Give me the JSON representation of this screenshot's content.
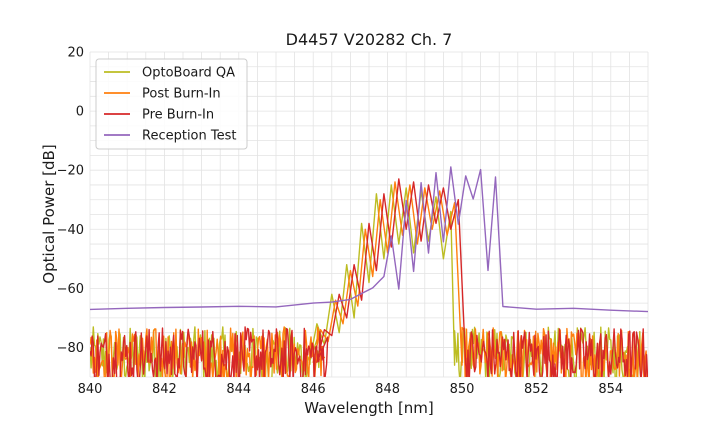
{
  "chart_data": {
    "type": "line",
    "title": "D4457 V20282 Ch. 7",
    "xlabel": "Wavelength [nm]",
    "ylabel": "Optical Power [dB]",
    "xlim": [
      840,
      855
    ],
    "ylim": [
      -90,
      20
    ],
    "xticks": [
      840,
      842,
      844,
      846,
      848,
      850,
      852,
      854
    ],
    "xtick_labels": [
      "840",
      "842",
      "844",
      "846",
      "848",
      "850",
      "852",
      "854"
    ],
    "yticks": [
      -80,
      -60,
      -40,
      -20,
      0,
      20
    ],
    "ytick_labels": [
      "−80",
      "−60",
      "−40",
      "−20",
      "0",
      "20"
    ],
    "grid": true,
    "legend_position": "top-left",
    "series": [
      {
        "name": "OptoBoard QA",
        "color": "#bcbd22",
        "noise_floor": -80,
        "floor_x_range": [
          840,
          846.2,
          849.8,
          855
        ],
        "x": [
          845.9,
          846.1,
          846.3,
          846.5,
          846.7,
          846.9,
          847.1,
          847.3,
          847.5,
          847.7,
          847.9,
          848.1,
          848.3,
          848.5,
          848.7,
          848.9,
          849.1,
          849.3,
          849.5,
          849.7,
          849.8
        ],
        "y": [
          -85,
          -72,
          -79,
          -62,
          -75,
          -52,
          -70,
          -38,
          -58,
          -28,
          -50,
          -25,
          -45,
          -26,
          -48,
          -27,
          -44,
          -29,
          -50,
          -34,
          -86
        ]
      },
      {
        "name": "Post Burn-In",
        "color": "#ff7f0e",
        "noise_floor": -80,
        "floor_x_range": [
          840,
          846.3,
          850.0,
          855
        ],
        "x": [
          846.0,
          846.2,
          846.4,
          846.6,
          846.8,
          847.0,
          847.2,
          847.4,
          847.6,
          847.8,
          848.0,
          848.2,
          848.4,
          848.6,
          848.8,
          849.0,
          849.2,
          849.4,
          849.6,
          849.8,
          850.0
        ],
        "y": [
          -85,
          -74,
          -78,
          -64,
          -72,
          -54,
          -66,
          -40,
          -56,
          -30,
          -48,
          -24,
          -42,
          -25,
          -45,
          -26,
          -40,
          -27,
          -42,
          -31,
          -86
        ]
      },
      {
        "name": "Pre Burn-In",
        "color": "#d62728",
        "noise_floor": -80,
        "floor_x_range": [
          840,
          846.4,
          850.1,
          855
        ],
        "x": [
          846.1,
          846.3,
          846.5,
          846.7,
          846.9,
          847.1,
          847.3,
          847.5,
          847.7,
          847.9,
          848.1,
          848.3,
          848.5,
          848.7,
          848.9,
          849.1,
          849.3,
          849.5,
          849.7,
          849.9,
          850.1
        ],
        "y": [
          -85,
          -74,
          -76,
          -62,
          -70,
          -52,
          -64,
          -38,
          -54,
          -28,
          -46,
          -23,
          -40,
          -24,
          -44,
          -25,
          -38,
          -26,
          -40,
          -30,
          -86
        ]
      },
      {
        "name": "Reception Test",
        "color": "#9467bd",
        "x": [
          840,
          841,
          842,
          843,
          844,
          845,
          846,
          846.5,
          847.0,
          847.3,
          847.6,
          847.9,
          848.1,
          848.3,
          848.5,
          848.7,
          848.9,
          849.1,
          849.3,
          849.5,
          849.7,
          849.9,
          850.1,
          850.3,
          850.5,
          850.7,
          850.9,
          851.1,
          852,
          853,
          854,
          855
        ],
        "y": [
          -67,
          -67,
          -66.5,
          -66.5,
          -66,
          -66,
          -65,
          -64.5,
          -64,
          -62,
          -60,
          -56,
          -42,
          -60,
          -30,
          -54,
          -24,
          -48,
          -21,
          -44,
          -19,
          -38,
          -22,
          -30,
          -20,
          -54,
          -22,
          -66,
          -67,
          -67,
          -67.5,
          -68
        ]
      }
    ]
  }
}
